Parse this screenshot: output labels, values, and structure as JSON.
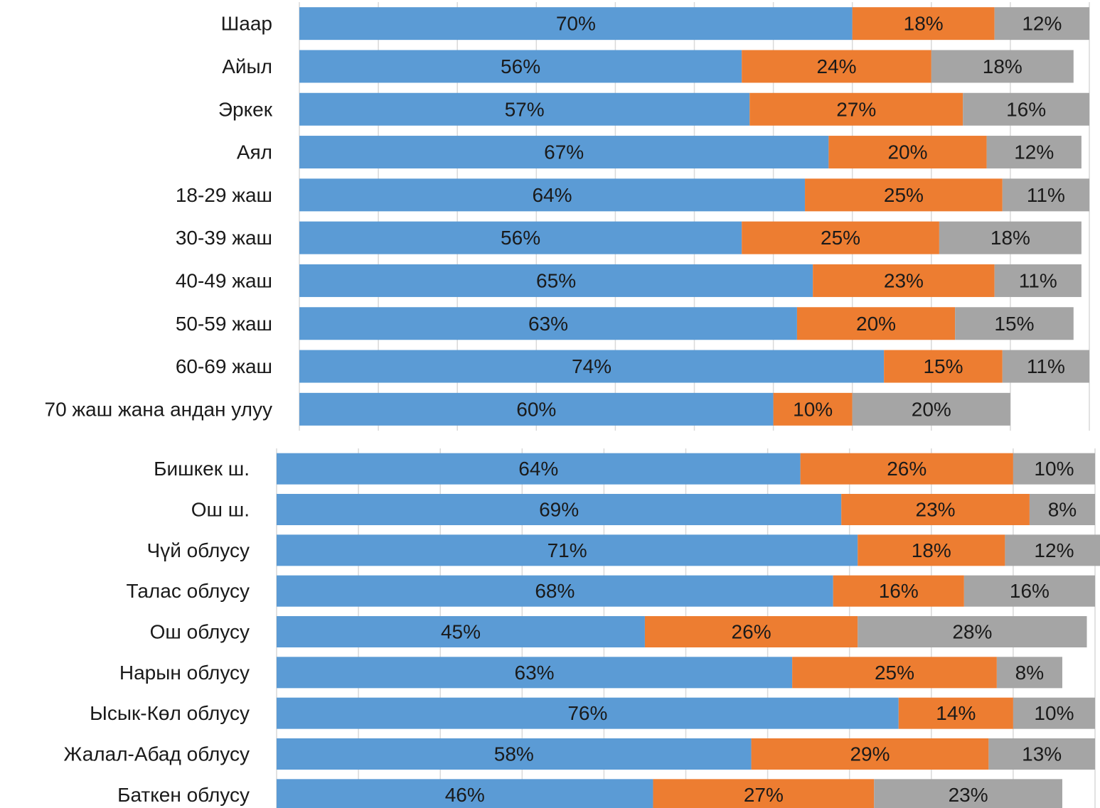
{
  "chart_data": [
    {
      "type": "bar",
      "orientation": "horizontal",
      "stacked": true,
      "grid": true,
      "categories": [
        "Шаар",
        "Айыл",
        "Эркек",
        "Аял",
        "18-29 жаш",
        "30-39 жаш",
        "40-49 жаш",
        "50-59 жаш",
        "60-69 жаш",
        "70 жаш жана андан улуу"
      ],
      "xlim": [
        0,
        100
      ],
      "xticks": [
        0,
        10,
        20,
        30,
        40,
        50,
        60,
        70,
        80,
        90,
        100
      ],
      "series": [
        {
          "color": "#5b9bd5",
          "values": [
            70,
            56,
            57,
            67,
            64,
            56,
            65,
            63,
            74,
            60
          ],
          "value_labels": [
            "70%",
            "56%",
            "57%",
            "67%",
            "64%",
            "56%",
            "65%",
            "63%",
            "74%",
            "60%"
          ]
        },
        {
          "color": "#ed7d31",
          "values": [
            18,
            24,
            27,
            20,
            25,
            25,
            23,
            20,
            15,
            10
          ],
          "value_labels": [
            "18%",
            "24%",
            "27%",
            "20%",
            "25%",
            "25%",
            "23%",
            "20%",
            "15%",
            "10%"
          ]
        },
        {
          "color": "#a5a5a5",
          "values": [
            12,
            18,
            16,
            12,
            11,
            18,
            11,
            15,
            11,
            20
          ],
          "value_labels": [
            "12%",
            "18%",
            "16%",
            "12%",
            "11%",
            "18%",
            "11%",
            "15%",
            "11%",
            "20%"
          ]
        }
      ]
    },
    {
      "type": "bar",
      "orientation": "horizontal",
      "stacked": true,
      "grid": true,
      "categories": [
        "Бишкек ш.",
        "Ош ш.",
        "Чүй облусу",
        "Талас облусу",
        "Ош облусу",
        "Нарын облусу",
        "Ысык-Көл облусу",
        "Жалал-Абад облусу",
        "Баткен облусу"
      ],
      "xlim": [
        0,
        100
      ],
      "xticks": [
        0,
        10,
        20,
        30,
        40,
        50,
        60,
        70,
        80,
        90,
        100
      ],
      "series": [
        {
          "color": "#5b9bd5",
          "values": [
            64,
            69,
            71,
            68,
            45,
            63,
            76,
            58,
            46
          ],
          "value_labels": [
            "64%",
            "69%",
            "71%",
            "68%",
            "45%",
            "63%",
            "76%",
            "58%",
            "46%"
          ]
        },
        {
          "color": "#ed7d31",
          "values": [
            26,
            23,
            18,
            16,
            26,
            25,
            14,
            29,
            27
          ],
          "value_labels": [
            "26%",
            "23%",
            "18%",
            "16%",
            "26%",
            "25%",
            "14%",
            "29%",
            "27%"
          ]
        },
        {
          "color": "#a5a5a5",
          "values": [
            10,
            8,
            12,
            16,
            28,
            8,
            10,
            13,
            23
          ],
          "value_labels": [
            "10%",
            "8%",
            "12%",
            "16%",
            "28%",
            "8%",
            "10%",
            "13%",
            "23%"
          ]
        }
      ]
    }
  ]
}
